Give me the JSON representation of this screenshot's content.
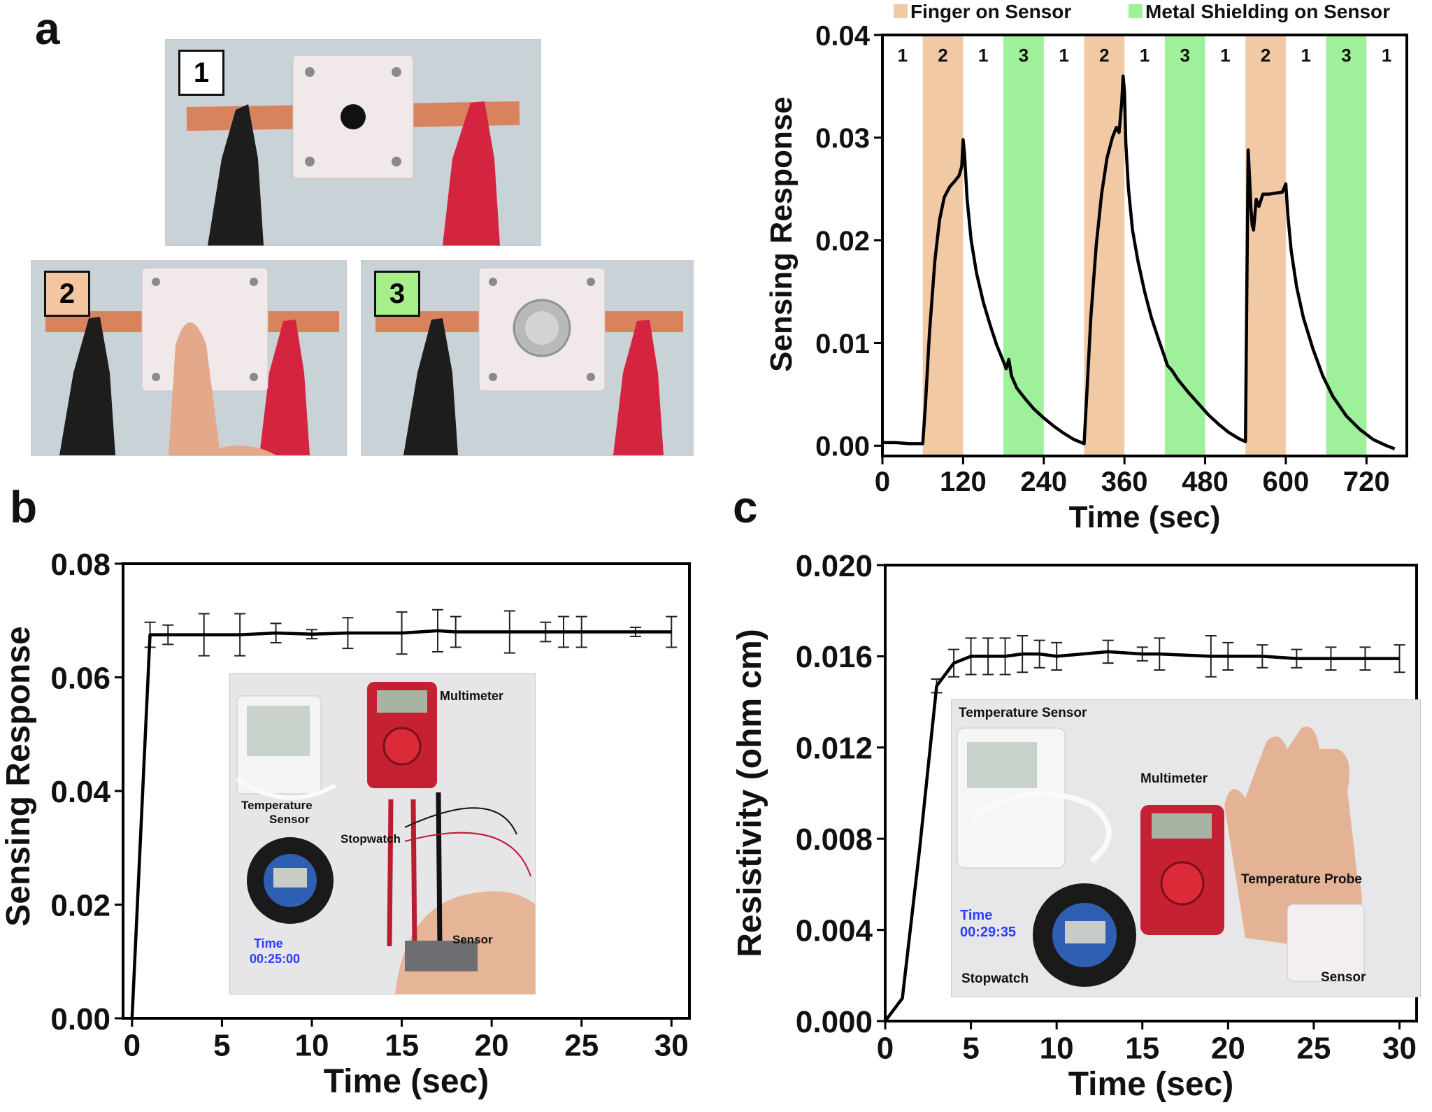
{
  "panels": {
    "a": "a",
    "b": "b",
    "c": "c"
  },
  "photos_a": [
    {
      "label": "1",
      "color": "#ffffff"
    },
    {
      "label": "2",
      "color": "#f3c6a0"
    },
    {
      "label": "3",
      "color": "#a8ee8a"
    }
  ],
  "inset_b": {
    "labels": {
      "multimeter": "Multimeter",
      "temp1": "Temperature",
      "temp2": "Sensor",
      "stopwatch": "Stopwatch",
      "sensor": "Sensor"
    },
    "time_label": "Time",
    "time_value": "00:25:00"
  },
  "inset_c": {
    "labels": {
      "temp_sensor": "Temperature Sensor",
      "multimeter": "Multimeter",
      "temp_probe": "Temperature Probe",
      "stopwatch": "Stopwatch",
      "sensor": "Sensor"
    },
    "time_label": "Time",
    "time_value": "00:29:35"
  },
  "colors": {
    "finger": "#f1c9a4",
    "shield": "#9ff09a",
    "line": "#000000"
  },
  "chart_data": [
    {
      "id": "a",
      "type": "line",
      "xlabel": "Time (sec)",
      "ylabel": "Sensing Response",
      "xlim": [
        0,
        780
      ],
      "ylim": [
        -0.001,
        0.04
      ],
      "xticks": [
        0,
        120,
        240,
        360,
        480,
        600,
        720
      ],
      "yticks": [
        0.0,
        0.01,
        0.02,
        0.03,
        0.04
      ],
      "ytick_labels": [
        "0.00",
        "0.01",
        "0.02",
        "0.03",
        "0.04"
      ],
      "legend": [
        {
          "label": "Finger on Sensor",
          "color": "#f1c9a4"
        },
        {
          "label": "Metal Shielding on Sensor",
          "color": "#9ff09a"
        }
      ],
      "legend_position": "top",
      "regions": [
        {
          "x0": 0,
          "x1": 60,
          "state": "1"
        },
        {
          "x0": 60,
          "x1": 120,
          "state": "2"
        },
        {
          "x0": 120,
          "x1": 180,
          "state": "1"
        },
        {
          "x0": 180,
          "x1": 240,
          "state": "3"
        },
        {
          "x0": 240,
          "x1": 300,
          "state": "1"
        },
        {
          "x0": 300,
          "x1": 360,
          "state": "2"
        },
        {
          "x0": 360,
          "x1": 420,
          "state": "1"
        },
        {
          "x0": 420,
          "x1": 480,
          "state": "3"
        },
        {
          "x0": 480,
          "x1": 540,
          "state": "1"
        },
        {
          "x0": 540,
          "x1": 600,
          "state": "2"
        },
        {
          "x0": 600,
          "x1": 660,
          "state": "1"
        },
        {
          "x0": 660,
          "x1": 720,
          "state": "3"
        },
        {
          "x0": 720,
          "x1": 780,
          "state": "1"
        }
      ],
      "series": [
        {
          "x": [
            0,
            20,
            40,
            60,
            64,
            70,
            78,
            85,
            92,
            100,
            108,
            114,
            118,
            120,
            122,
            126,
            132,
            140,
            150,
            160,
            170,
            180,
            184,
            188,
            192,
            200,
            212,
            225,
            240,
            255,
            270,
            285,
            300,
            304,
            310,
            318,
            326,
            334,
            342,
            348,
            352,
            356,
            358,
            360,
            362,
            366,
            372,
            380,
            390,
            400,
            410,
            420,
            424,
            430,
            440,
            455,
            470,
            485,
            500,
            515,
            530,
            540,
            542,
            544,
            546,
            548,
            550,
            552,
            556,
            560,
            566,
            575,
            585,
            595,
            600,
            603,
            608,
            616,
            626,
            640,
            655,
            670,
            690,
            710,
            730,
            750,
            762
          ],
          "y": [
            0.0003,
            0.0003,
            0.0002,
            0.0002,
            0.004,
            0.011,
            0.018,
            0.022,
            0.0242,
            0.0252,
            0.0258,
            0.0263,
            0.0272,
            0.0298,
            0.0285,
            0.024,
            0.02,
            0.0168,
            0.014,
            0.0118,
            0.0098,
            0.0082,
            0.0075,
            0.0084,
            0.0068,
            0.0056,
            0.0046,
            0.0036,
            0.0027,
            0.0019,
            0.0012,
            0.0006,
            0.0002,
            0.005,
            0.0125,
            0.0195,
            0.0245,
            0.028,
            0.03,
            0.031,
            0.0305,
            0.0335,
            0.036,
            0.0345,
            0.0295,
            0.025,
            0.021,
            0.018,
            0.015,
            0.0125,
            0.0105,
            0.0086,
            0.0078,
            0.0074,
            0.0064,
            0.0052,
            0.0041,
            0.003,
            0.0021,
            0.0013,
            0.0007,
            0.0004,
            0.015,
            0.0288,
            0.0262,
            0.0232,
            0.0215,
            0.021,
            0.024,
            0.0233,
            0.0245,
            0.0245,
            0.0246,
            0.0247,
            0.0255,
            0.0225,
            0.019,
            0.0155,
            0.0125,
            0.0095,
            0.0068,
            0.0048,
            0.0029,
            0.0016,
            0.0006,
            0.0,
            -0.0003
          ]
        }
      ]
    },
    {
      "id": "b",
      "type": "line",
      "xlabel": "Time (sec)",
      "ylabel": "Sensing Response",
      "xlim": [
        -0.5,
        31
      ],
      "ylim": [
        0,
        0.08
      ],
      "xticks": [
        0,
        5,
        10,
        15,
        20,
        25,
        30
      ],
      "yticks": [
        0.0,
        0.02,
        0.04,
        0.06,
        0.08
      ],
      "ytick_labels": [
        "0.00",
        "0.02",
        "0.04",
        "0.06",
        "0.08"
      ],
      "series": [
        {
          "x": [
            0,
            1,
            2,
            4,
            6,
            8,
            10,
            12,
            15,
            17,
            18,
            21,
            23,
            24,
            25,
            28,
            30
          ],
          "y": [
            0.0,
            0.0675,
            0.0675,
            0.0675,
            0.0675,
            0.0678,
            0.0676,
            0.0678,
            0.0678,
            0.0682,
            0.068,
            0.068,
            0.068,
            0.068,
            0.068,
            0.068,
            0.068
          ],
          "err": [
            0,
            0.0022,
            0.0017,
            0.0037,
            0.0037,
            0.0017,
            0.0008,
            0.0027,
            0.0037,
            0.0037,
            0.0027,
            0.0037,
            0.0017,
            0.0027,
            0.0027,
            0.0008,
            0.0027
          ]
        }
      ]
    },
    {
      "id": "c",
      "type": "line",
      "xlabel": "Time (sec)",
      "ylabel": "Resistivity (ohm cm)",
      "xlim": [
        0,
        31
      ],
      "ylim": [
        0,
        0.02
      ],
      "xticks": [
        0,
        5,
        10,
        15,
        20,
        25,
        30
      ],
      "yticks": [
        0.0,
        0.004,
        0.008,
        0.012,
        0.016,
        0.02
      ],
      "ytick_labels": [
        "0.000",
        "0.004",
        "0.008",
        "0.012",
        "0.016",
        "0.020"
      ],
      "series": [
        {
          "x": [
            0,
            1,
            2,
            3,
            4,
            5,
            6,
            7,
            8,
            9,
            10,
            13,
            15,
            16,
            19,
            20,
            22,
            24,
            26,
            28,
            30
          ],
          "y": [
            0.0,
            0.001,
            0.0075,
            0.0147,
            0.0157,
            0.016,
            0.016,
            0.016,
            0.0161,
            0.0161,
            0.016,
            0.0162,
            0.0161,
            0.0161,
            0.016,
            0.016,
            0.016,
            0.0159,
            0.0159,
            0.0159,
            0.0159
          ],
          "err": [
            0,
            0,
            0,
            0.0003,
            0.0006,
            0.0008,
            0.0008,
            0.0008,
            0.0008,
            0.0006,
            0.0006,
            0.0005,
            0.0003,
            0.0007,
            0.0009,
            0.0006,
            0.0005,
            0.0004,
            0.0005,
            0.0005,
            0.0006
          ]
        }
      ]
    }
  ]
}
